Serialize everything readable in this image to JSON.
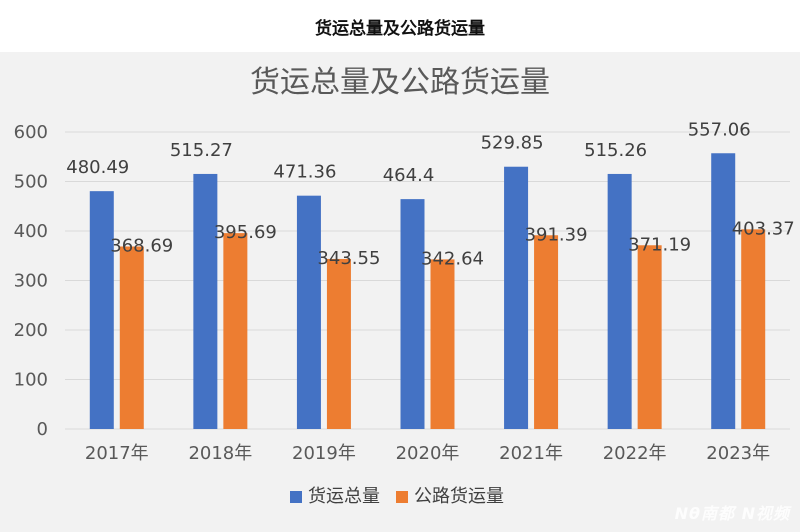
{
  "page": {
    "heading": "货运总量及公路货运量"
  },
  "chart_data": {
    "type": "bar",
    "title": "货运总量及公路货运量",
    "categories": [
      "2017年",
      "2018年",
      "2019年",
      "2020年",
      "2021年",
      "2022年",
      "2023年"
    ],
    "series": [
      {
        "name": "货运总量",
        "values": [
          480.49,
          515.27,
          471.36,
          464.4,
          529.85,
          515.26,
          557.06
        ],
        "color": "#4472c4"
      },
      {
        "name": "公路货运量",
        "values": [
          368.69,
          395.69,
          343.55,
          342.64,
          391.39,
          371.19,
          403.37
        ],
        "color": "#ed7d31"
      }
    ],
    "ylim": [
      0,
      600
    ],
    "yticks": [
      0,
      100,
      200,
      300,
      400,
      500,
      600
    ],
    "grid": true,
    "legend": "bottom"
  },
  "watermark": "Nθ南都 N视频"
}
